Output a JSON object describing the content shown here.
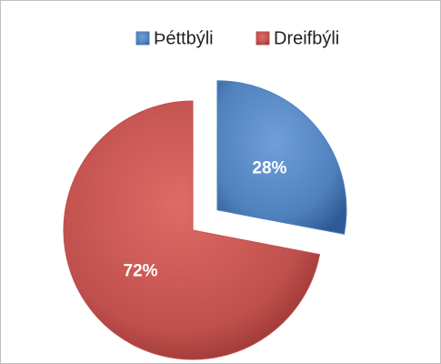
{
  "chart_data": {
    "type": "pie",
    "categories": [
      "Þéttbýli",
      "Dreifbýli"
    ],
    "values": [
      28,
      72
    ],
    "value_labels": [
      "28%",
      "72%"
    ],
    "colors": [
      "#4f81bd",
      "#c0504d"
    ],
    "exploded": [
      true,
      false
    ],
    "legend": "top"
  }
}
